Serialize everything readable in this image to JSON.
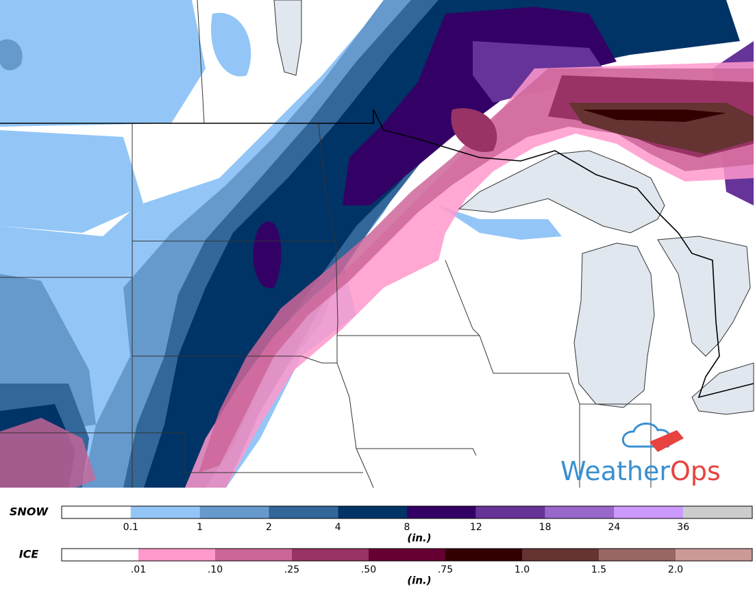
{
  "legend": {
    "snow": {
      "label": "SNOW",
      "unit": "(in.)",
      "colors": [
        "#ffffff",
        "#93c6f7",
        "#6699cc",
        "#336699",
        "#003366",
        "#330066",
        "#663399",
        "#9966cc",
        "#cc99ff",
        "#cccccc"
      ],
      "ticks": [
        "0.1",
        "1",
        "2",
        "4",
        "8",
        "12",
        "18",
        "24",
        "36"
      ]
    },
    "ice": {
      "label": "ICE",
      "unit": "(in.)",
      "colors": [
        "#ffffff",
        "#ff99cc",
        "#cc6699",
        "#993366",
        "#660033",
        "#330000",
        "#663333",
        "#996666",
        "#cc9999"
      ],
      "ticks": [
        ".01",
        ".10",
        ".25",
        ".50",
        ".75",
        "1.0",
        "1.5",
        "2.0"
      ]
    }
  },
  "logo": {
    "brand": "Weather",
    "brand_accent": "Ops"
  }
}
